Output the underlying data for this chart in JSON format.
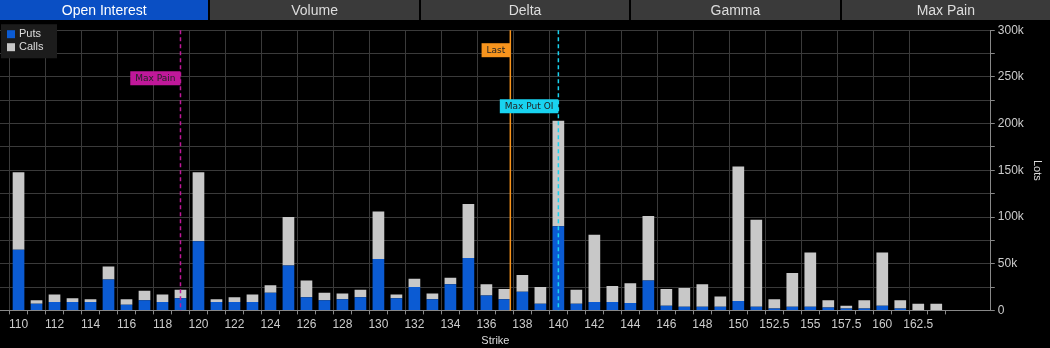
{
  "chart_data": {
    "type": "bar",
    "stacked": true,
    "xlabel": "Strike",
    "ylabel": "Lots",
    "annotations": [
      "Open Interest",
      "Volume",
      "Delta",
      "Gamma",
      "Max Pain",
      "Max Pain",
      "Last"
    ],
    "categories": [
      "110",
      null,
      "112",
      null,
      "114",
      null,
      "116",
      null,
      "118",
      null,
      "120",
      null,
      "122",
      null,
      "124",
      null,
      "126",
      null,
      "128",
      null,
      "130",
      null,
      "132",
      null,
      "134",
      null,
      "136",
      null,
      "138",
      null,
      "140",
      null,
      "142",
      null,
      "144",
      null,
      "146",
      null,
      "148",
      null,
      "150",
      null,
      "152.5",
      null,
      "155",
      null,
      "157.5",
      null,
      "160",
      null,
      "162.5",
      null
    ],
    "series": [
      {
        "name": "Puts",
        "color": "#0b5bd3",
        "values": [
          65000,
          7000,
          9000,
          9000,
          9000,
          33000,
          6000,
          11000,
          9000,
          13000,
          74000,
          9000,
          9000,
          9000,
          19000,
          48000,
          14000,
          11000,
          12000,
          14000,
          55000,
          13000,
          25000,
          12000,
          28000,
          56000,
          16000,
          12000,
          20000,
          7000,
          90000,
          7000,
          9000,
          9000,
          8000,
          32000,
          5000,
          4000,
          4000,
          4000,
          10000,
          4000,
          2000,
          4000,
          4000,
          3000,
          2000,
          2000,
          5000,
          2000,
          0,
          0
        ]
      },
      {
        "name": "Calls",
        "color": "#c8c8c8",
        "values": [
          83000,
          4000,
          8000,
          4000,
          3000,
          14000,
          6000,
          10000,
          8000,
          9000,
          74000,
          3000,
          5000,
          8000,
          8000,
          52000,
          18000,
          8000,
          6000,
          8000,
          51000,
          4000,
          9000,
          6000,
          7000,
          58000,
          12000,
          11000,
          18000,
          18000,
          113000,
          15000,
          72000,
          17000,
          21000,
          69000,
          18000,
          20000,
          24000,
          11000,
          144000,
          93000,
          10000,
          36000,
          58000,
          8000,
          3000,
          9000,
          57000,
          9000,
          7000,
          7000
        ]
      }
    ],
    "ylim": [
      0,
      300000
    ],
    "yticks": [
      {
        "value": 0,
        "label": "0"
      },
      {
        "value": 25000,
        "label": null
      },
      {
        "value": 50000,
        "label": "50k"
      },
      {
        "value": 75000,
        "label": null
      },
      {
        "value": 100000,
        "label": "100k"
      },
      {
        "value": 125000,
        "label": null
      },
      {
        "value": 150000,
        "label": "150k"
      },
      {
        "value": 175000,
        "label": null
      },
      {
        "value": 200000,
        "label": "200k"
      },
      {
        "value": 225000,
        "label": null
      },
      {
        "value": 250000,
        "label": "250k"
      },
      {
        "value": 275000,
        "label": null
      },
      {
        "value": 300000,
        "label": "300k"
      }
    ],
    "grid": true,
    "legend": "top left",
    "ref_lines": [
      {
        "axis": "x",
        "value": "140",
        "label": "Max Put OI",
        "color": "#19d3f0",
        "line_style": "dashed"
      }
    ]
  }
}
